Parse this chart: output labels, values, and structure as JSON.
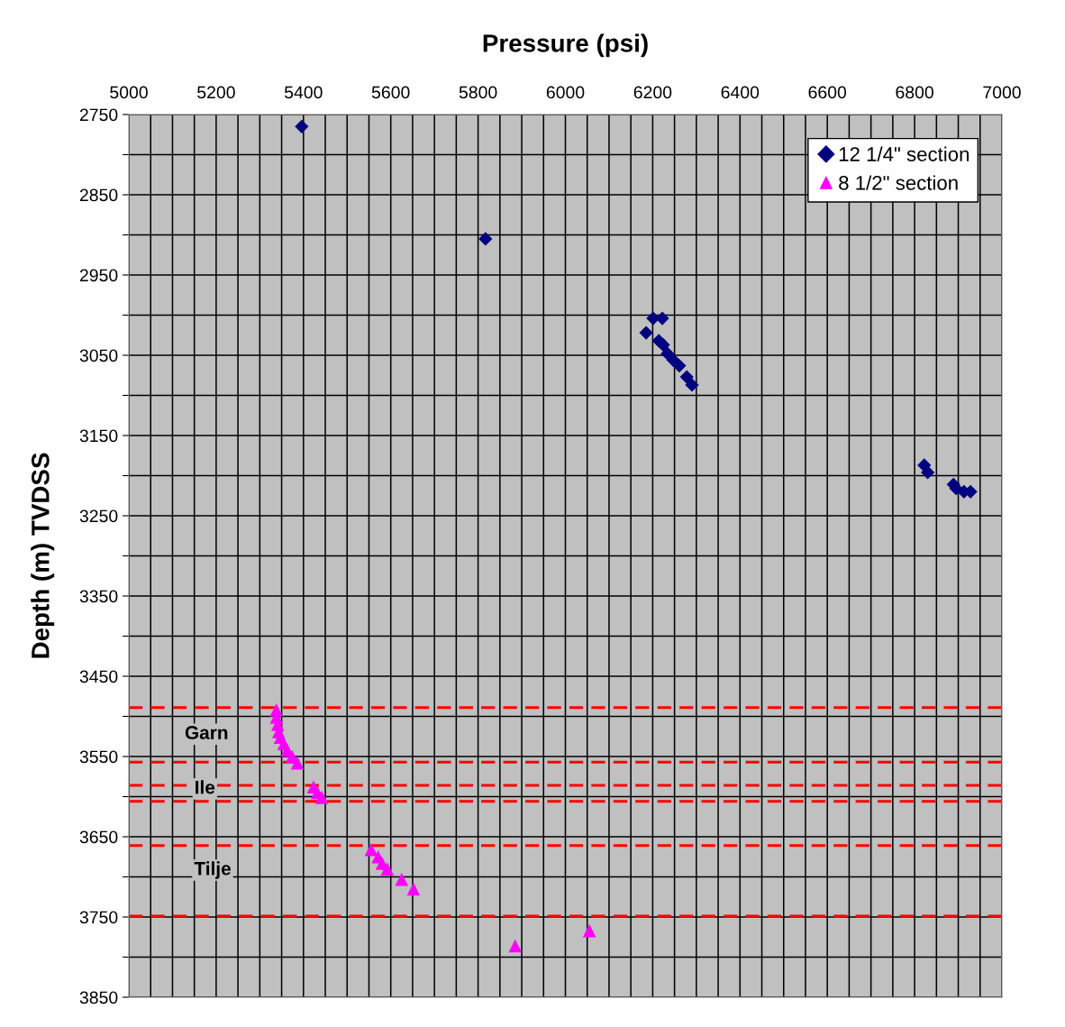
{
  "chart_data": {
    "type": "scatter",
    "title": "Pressure (psi)",
    "ylabel": "Depth (m) TVDSS",
    "xlim": [
      5000,
      7000
    ],
    "ylim": [
      3850,
      2750
    ],
    "xticks": [
      5000,
      {
        "value": 5050,
        "label": null
      },
      {
        "value": 5100,
        "label": null
      },
      {
        "value": 5150,
        "label": null
      },
      5200,
      {
        "value": 5250,
        "label": null
      },
      {
        "value": 5300,
        "label": null
      },
      {
        "value": 5350,
        "label": null
      },
      5400,
      {
        "value": 5450,
        "label": null
      },
      {
        "value": 5500,
        "label": null
      },
      {
        "value": 5550,
        "label": null
      },
      5600,
      {
        "value": 5650,
        "label": null
      },
      {
        "value": 5700,
        "label": null
      },
      {
        "value": 5750,
        "label": null
      },
      5800,
      {
        "value": 5850,
        "label": null
      },
      {
        "value": 5900,
        "label": null
      },
      {
        "value": 5950,
        "label": null
      },
      6000,
      {
        "value": 6050,
        "label": null
      },
      {
        "value": 6100,
        "label": null
      },
      {
        "value": 6150,
        "label": null
      },
      6200,
      {
        "value": 6250,
        "label": null
      },
      {
        "value": 6300,
        "label": null
      },
      {
        "value": 6350,
        "label": null
      },
      6400,
      {
        "value": 6450,
        "label": null
      },
      {
        "value": 6500,
        "label": null
      },
      {
        "value": 6550,
        "label": null
      },
      6600,
      {
        "value": 6650,
        "label": null
      },
      {
        "value": 6700,
        "label": null
      },
      {
        "value": 6750,
        "label": null
      },
      6800,
      {
        "value": 6850,
        "label": null
      },
      {
        "value": 6900,
        "label": null
      },
      {
        "value": 6950,
        "label": null
      },
      7000
    ],
    "yticks": [
      2750,
      {
        "value": 2800,
        "label": null
      },
      2850,
      {
        "value": 2900,
        "label": null
      },
      2950,
      {
        "value": 3000,
        "label": null
      },
      3050,
      {
        "value": 3100,
        "label": null
      },
      3150,
      {
        "value": 3200,
        "label": null
      },
      3250,
      {
        "value": 3300,
        "label": null
      },
      3350,
      {
        "value": 3400,
        "label": null
      },
      3450,
      {
        "value": 3500,
        "label": null
      },
      3550,
      {
        "value": 3600,
        "label": null
      },
      3650,
      {
        "value": 3700,
        "label": null
      },
      3750,
      {
        "value": 3800,
        "label": null
      },
      3850
    ],
    "grid": true,
    "legend": "top right",
    "series": [
      {
        "name": "12 1/4\" section",
        "color": "#000080",
        "marker": "diamond",
        "x": [
          5396,
          5817,
          6201,
          6222,
          6185,
          6214,
          6224,
          6234,
          6247,
          6261,
          6278,
          6290,
          6822,
          6830,
          6889,
          6895,
          6913,
          6928
        ],
        "values": [
          2765,
          2905,
          3004,
          3004,
          3022,
          3032,
          3037,
          3048,
          3056,
          3063,
          3077,
          3087,
          3187,
          3196,
          3211,
          3216,
          3220,
          3220
        ]
      },
      {
        "name": "8 1/2\" section",
        "color": "#ff00ff",
        "marker": "triangle",
        "x": [
          5338,
          5338,
          5341,
          5343,
          5347,
          5355,
          5363,
          5374,
          5386,
          5423,
          5432,
          5442,
          5555,
          5571,
          5580,
          5592,
          5625,
          5652,
          5885,
          6055
        ],
        "values": [
          3492,
          3501,
          3510,
          3519,
          3526,
          3534,
          3542,
          3550,
          3558,
          3588,
          3595,
          3601,
          3666,
          3675,
          3683,
          3690,
          3703,
          3715,
          3786,
          3767
        ]
      }
    ],
    "ref_lines": [
      {
        "axis": "y",
        "value": 3489,
        "color": "#ff0000",
        "line_style": "dashed"
      },
      {
        "axis": "y",
        "value": 3557,
        "color": "#ff0000",
        "line_style": "dashed"
      },
      {
        "axis": "y",
        "value": 3586,
        "color": "#ff0000",
        "line_style": "dashed"
      },
      {
        "axis": "y",
        "value": 3606,
        "color": "#ff0000",
        "line_style": "dashed"
      },
      {
        "axis": "y",
        "value": 3661,
        "color": "#ff0000",
        "line_style": "dashed"
      },
      {
        "axis": "y",
        "value": 3749,
        "color": "#ff0000",
        "line_style": "dashed"
      }
    ],
    "annotations": [
      "Garn",
      "Ile",
      "Tilje"
    ]
  }
}
